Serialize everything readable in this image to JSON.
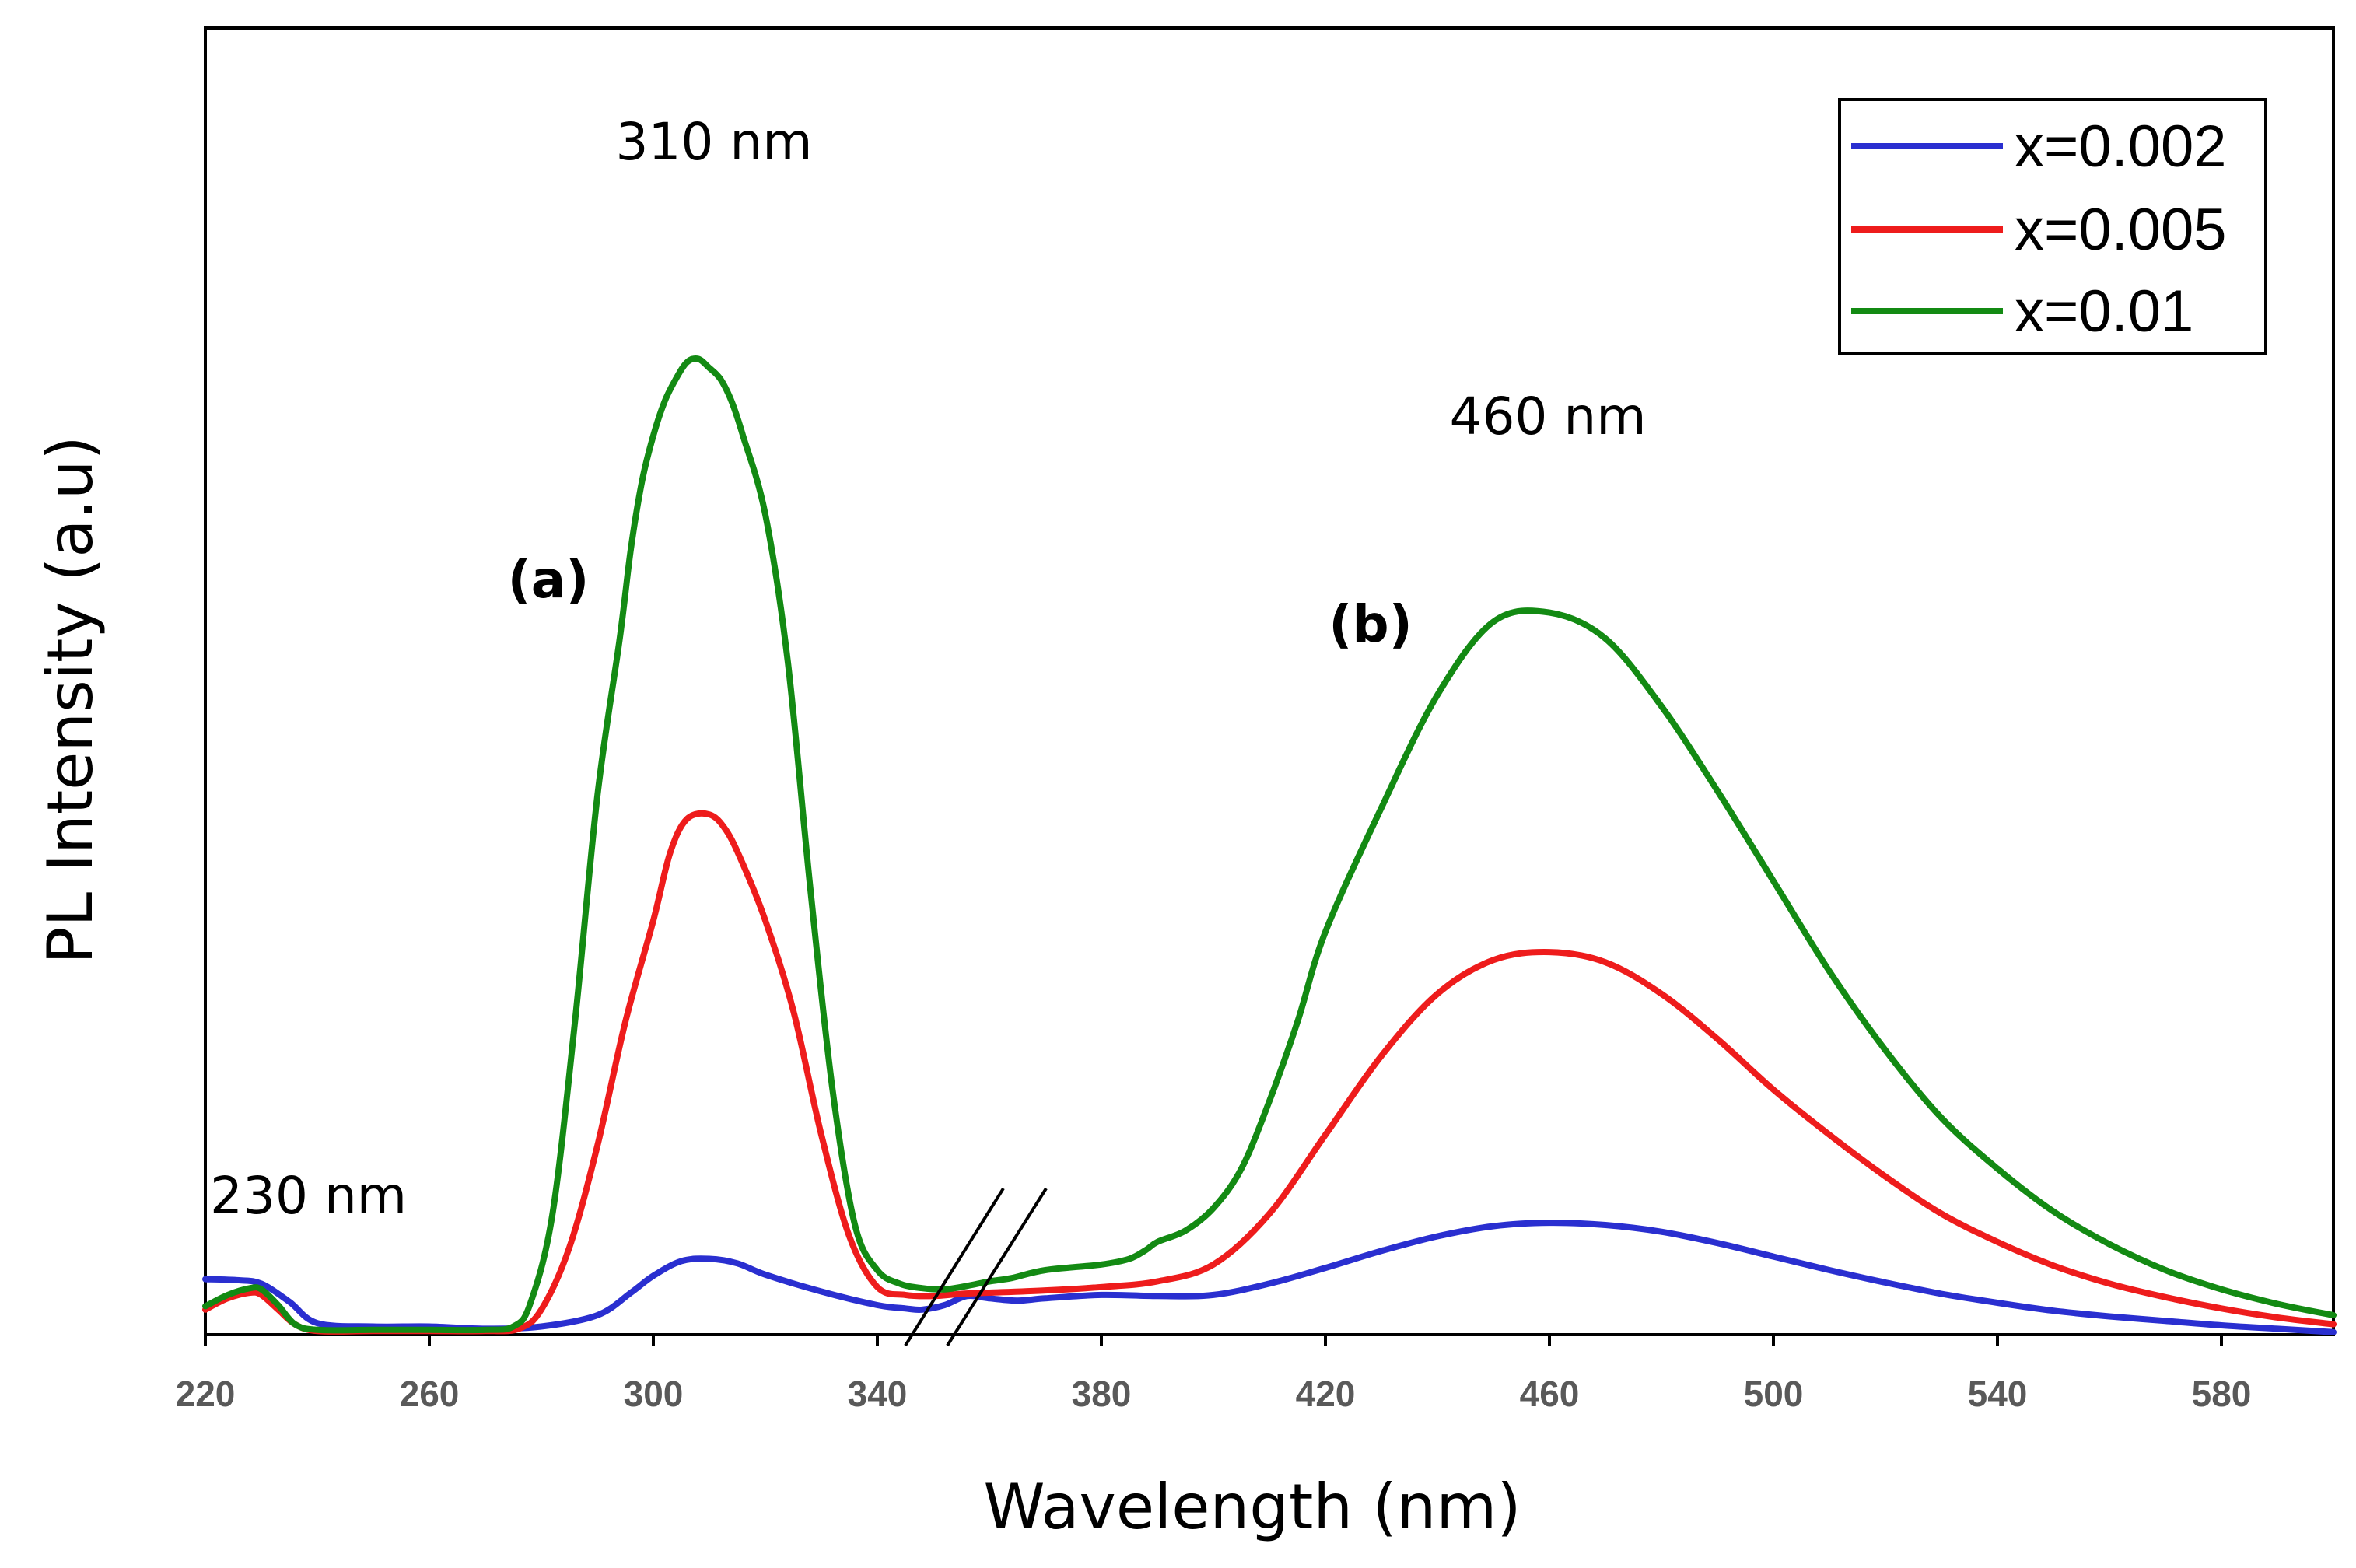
{
  "chart_data": {
    "type": "line",
    "xlabel": "Wavelength (nm)",
    "ylabel": "PL Intensity (a.u)",
    "xlim": [
      220,
      600
    ],
    "ylim": [
      0,
      100
    ],
    "x_ticks": [
      220,
      260,
      300,
      340,
      380,
      420,
      460,
      500,
      540,
      580
    ],
    "x_tick_labels": [
      "220",
      "260",
      "300",
      "340",
      "380",
      "420",
      "460",
      "500",
      "540",
      "580"
    ],
    "legend_position": "top-right",
    "annotations": {
      "peak_230": "230 nm",
      "peak_310": "310 nm",
      "peak_460": "460 nm",
      "label_a": "(a)",
      "label_b": "(b)"
    },
    "series": [
      {
        "name": "x=0.002",
        "color": "#2a2fd0",
        "x": [
          220,
          226,
          230,
          235,
          240,
          250,
          260,
          270,
          280,
          290,
          296,
          300,
          305,
          310,
          315,
          320,
          330,
          340,
          345,
          348,
          352,
          356,
          360,
          365,
          370,
          380,
          390,
          400,
          410,
          420,
          430,
          440,
          450,
          460,
          470,
          480,
          490,
          500,
          510,
          520,
          530,
          540,
          550,
          560,
          570,
          580,
          590,
          600
        ],
        "y": [
          5.2,
          5.1,
          4.8,
          3.2,
          1.3,
          1.0,
          1.0,
          0.8,
          1.0,
          2.0,
          4.0,
          5.5,
          6.8,
          7.0,
          6.6,
          5.6,
          4.1,
          2.9,
          2.6,
          2.5,
          2.9,
          3.7,
          3.5,
          3.3,
          3.5,
          3.8,
          3.7,
          3.8,
          4.8,
          6.2,
          7.7,
          9.0,
          9.9,
          10.2,
          10.0,
          9.4,
          8.4,
          7.2,
          6.0,
          4.9,
          3.9,
          3.1,
          2.4,
          1.9,
          1.5,
          1.1,
          0.8,
          0.5
        ]
      },
      {
        "name": "x=0.005",
        "color": "#ee1c1c",
        "x": [
          220,
          224,
          228,
          230,
          233,
          236,
          240,
          250,
          260,
          270,
          276,
          280,
          285,
          290,
          295,
          300,
          303,
          306,
          310,
          313,
          316,
          320,
          325,
          330,
          335,
          340,
          345,
          350,
          355,
          360,
          370,
          380,
          390,
          400,
          410,
          420,
          430,
          440,
          450,
          460,
          470,
          480,
          490,
          500,
          510,
          520,
          530,
          540,
          550,
          560,
          570,
          580,
          590,
          600
        ],
        "y": [
          2.5,
          3.5,
          4.0,
          3.8,
          2.5,
          1.2,
          0.6,
          0.6,
          0.6,
          0.6,
          0.8,
          2.5,
          8.0,
          17.0,
          28.0,
          37.0,
          43.0,
          46.0,
          46.4,
          45.0,
          42.0,
          37.0,
          29.0,
          18.0,
          9.0,
          4.5,
          3.8,
          3.7,
          3.9,
          4.0,
          4.2,
          4.5,
          5.0,
          6.5,
          11.0,
          18.0,
          25.0,
          30.5,
          33.5,
          34.2,
          33.3,
          30.5,
          26.5,
          22.0,
          18.0,
          14.3,
          11.0,
          8.5,
          6.4,
          4.8,
          3.6,
          2.6,
          1.8,
          1.2
        ]
      },
      {
        "name": "x=0.01",
        "color": "#138a13",
        "x": [
          220,
          224,
          228,
          230,
          233,
          236,
          240,
          250,
          260,
          270,
          275,
          278,
          282,
          286,
          290,
          294,
          296,
          298,
          300,
          302,
          304,
          306,
          308,
          310,
          312,
          314,
          316,
          320,
          324,
          328,
          332,
          336,
          340,
          344,
          348,
          352,
          356,
          360,
          364,
          370,
          380,
          385,
          388,
          390,
          395,
          400,
          405,
          410,
          415,
          420,
          430,
          440,
          450,
          460,
          470,
          480,
          490,
          500,
          510,
          520,
          530,
          540,
          550,
          560,
          570,
          580,
          590,
          600
        ],
        "y": [
          2.8,
          3.8,
          4.4,
          4.3,
          2.9,
          1.2,
          0.7,
          0.7,
          0.7,
          0.7,
          1.0,
          3.0,
          11.0,
          28.0,
          48.0,
          62.0,
          70.0,
          76.0,
          80.0,
          83.0,
          85.0,
          86.5,
          86.8,
          86.0,
          85.0,
          83.0,
          80.0,
          73.0,
          60.0,
          40.0,
          22.0,
          10.0,
          6.0,
          4.8,
          4.4,
          4.3,
          4.6,
          5.0,
          5.3,
          6.0,
          6.5,
          7.0,
          7.8,
          8.5,
          9.5,
          11.5,
          15.0,
          21.0,
          28.0,
          36.0,
          47.0,
          57.0,
          63.5,
          64.3,
          62.0,
          56.0,
          48.5,
          40.5,
          32.5,
          25.5,
          19.5,
          15.0,
          11.2,
          8.3,
          6.0,
          4.3,
          3.0,
          2.0
        ]
      }
    ]
  }
}
